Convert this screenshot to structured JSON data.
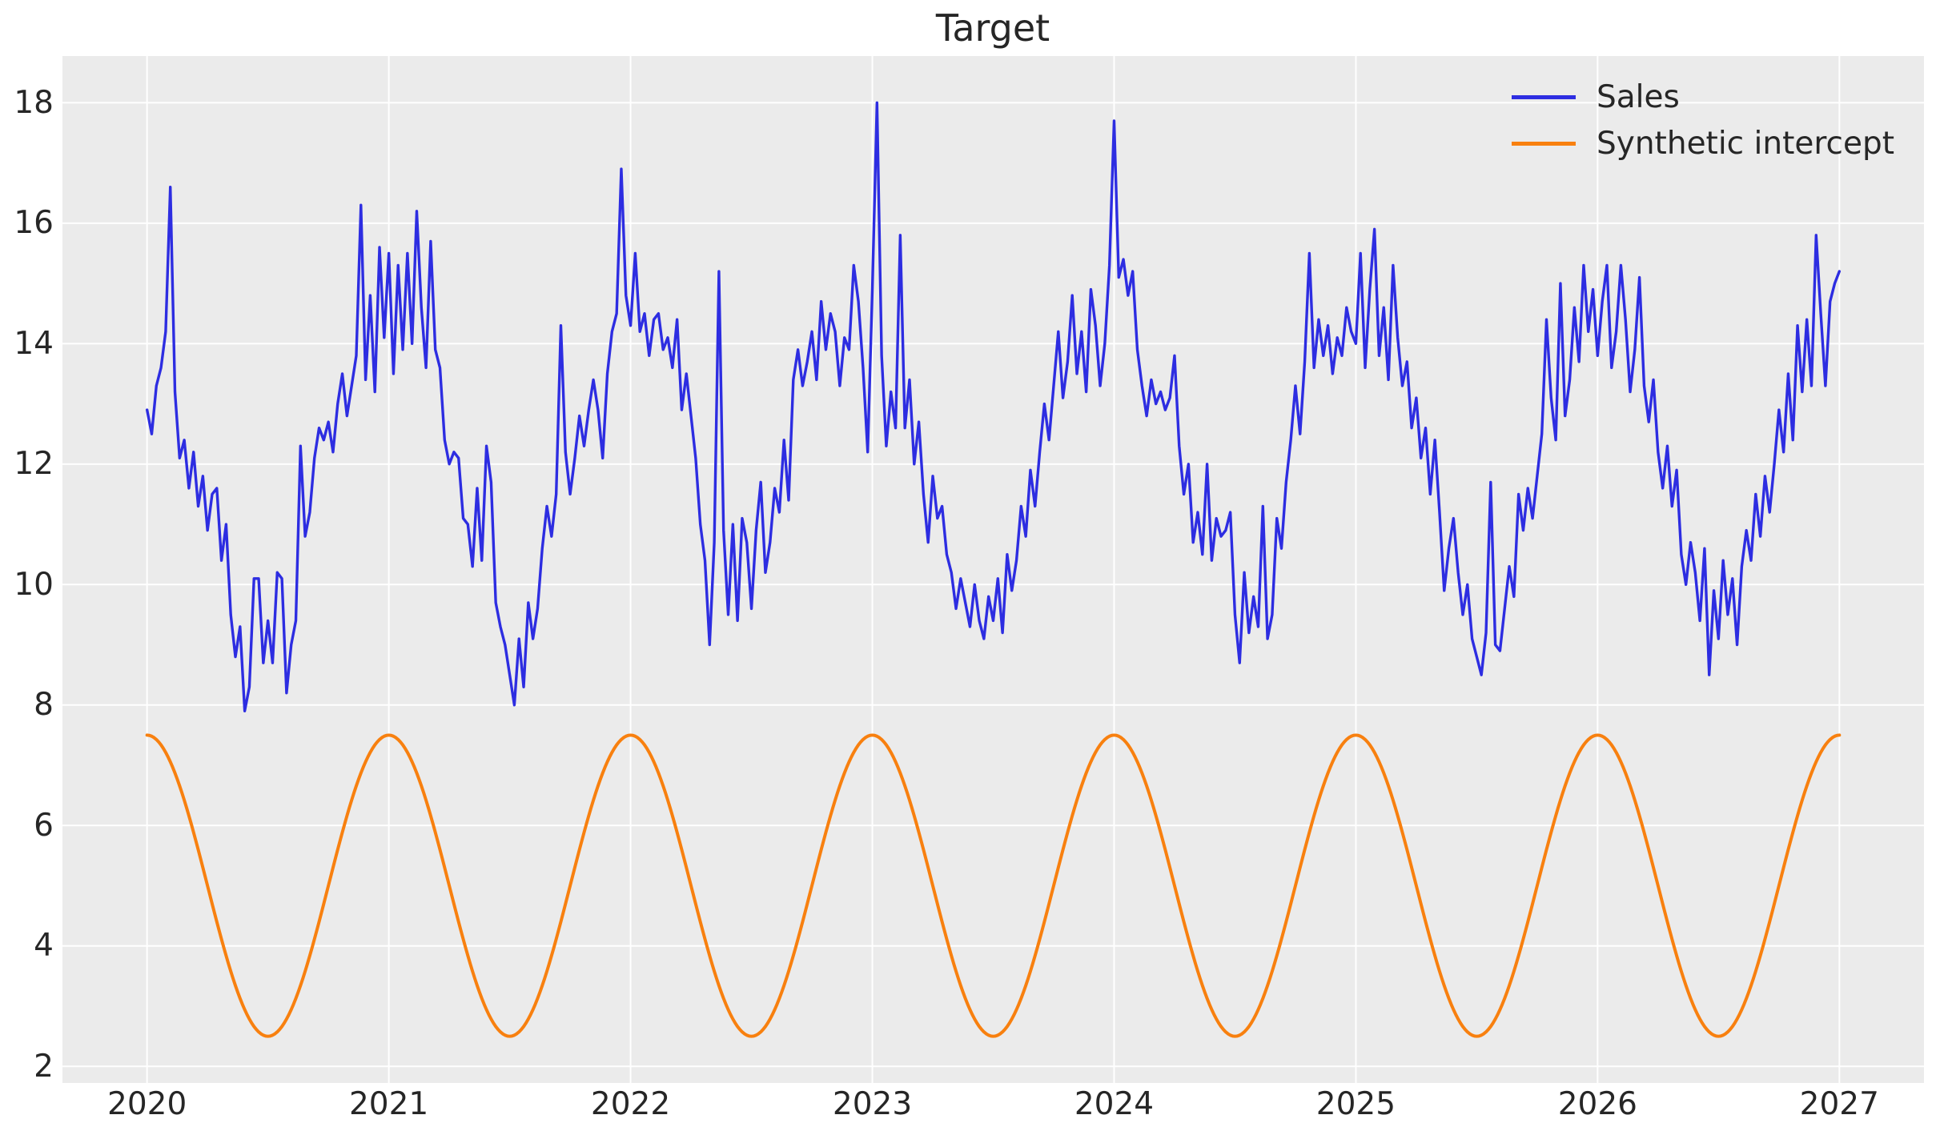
{
  "figure": {
    "title": "Target",
    "background": "#ffffff",
    "axes_background": "#ebebeb",
    "grid_color": "#ffffff",
    "text_color": "#262626"
  },
  "chart_data": {
    "type": "line",
    "title": "Target",
    "xlabel": "",
    "ylabel": "",
    "grid": true,
    "legend_position": "upper right",
    "xlim": [
      2019.65,
      2027.35
    ],
    "ylim": [
      1.725,
      18.775
    ],
    "xticks": [
      2020,
      2021,
      2022,
      2023,
      2024,
      2025,
      2026,
      2027
    ],
    "yticks": [
      2,
      4,
      6,
      8,
      10,
      12,
      14,
      16,
      18
    ],
    "series": [
      {
        "name": "Sales",
        "color": "#2d2de1",
        "line_width": 3.4,
        "x_start": 2020,
        "x_step": 0.019230769,
        "values": [
          12.9,
          12.5,
          13.3,
          13.6,
          14.2,
          16.6,
          13.2,
          12.1,
          12.4,
          11.6,
          12.2,
          11.3,
          11.8,
          10.9,
          11.5,
          11.6,
          10.4,
          11.0,
          9.5,
          8.8,
          9.3,
          7.9,
          8.3,
          10.1,
          10.1,
          8.7,
          9.4,
          8.7,
          10.2,
          10.1,
          8.2,
          9.0,
          9.4,
          12.3,
          10.8,
          11.2,
          12.1,
          12.6,
          12.4,
          12.7,
          12.2,
          13.0,
          13.5,
          12.8,
          13.3,
          13.8,
          16.3,
          13.4,
          14.8,
          13.2,
          15.6,
          14.1,
          15.5,
          13.5,
          15.3,
          13.9,
          15.5,
          14.0,
          16.2,
          14.6,
          13.6,
          15.7,
          13.9,
          13.6,
          12.4,
          12.0,
          12.2,
          12.1,
          11.1,
          11.0,
          10.3,
          11.6,
          10.4,
          12.3,
          11.7,
          9.7,
          9.3,
          9.0,
          8.5,
          8.0,
          9.1,
          8.3,
          9.7,
          9.1,
          9.6,
          10.6,
          11.3,
          10.8,
          11.5,
          14.3,
          12.2,
          11.5,
          12.1,
          12.8,
          12.3,
          12.9,
          13.4,
          12.9,
          12.1,
          13.5,
          14.2,
          14.5,
          16.9,
          14.8,
          14.3,
          15.5,
          14.2,
          14.5,
          13.8,
          14.4,
          14.5,
          13.9,
          14.1,
          13.6,
          14.4,
          12.9,
          13.5,
          12.8,
          12.1,
          11.0,
          10.4,
          9.0,
          10.7,
          15.2,
          10.9,
          9.5,
          11.0,
          9.4,
          11.1,
          10.7,
          9.6,
          10.9,
          11.7,
          10.2,
          10.7,
          11.6,
          11.2,
          12.4,
          11.4,
          13.4,
          13.9,
          13.3,
          13.7,
          14.2,
          13.4,
          14.7,
          13.9,
          14.5,
          14.2,
          13.3,
          14.1,
          13.9,
          15.3,
          14.7,
          13.6,
          12.2,
          14.9,
          18.0,
          13.8,
          12.3,
          13.2,
          12.6,
          15.8,
          12.6,
          13.4,
          12.0,
          12.7,
          11.5,
          10.7,
          11.8,
          11.1,
          11.3,
          10.5,
          10.2,
          9.6,
          10.1,
          9.7,
          9.3,
          10.0,
          9.4,
          9.1,
          9.8,
          9.4,
          10.1,
          9.2,
          10.5,
          9.9,
          10.4,
          11.3,
          10.8,
          11.9,
          11.3,
          12.2,
          13.0,
          12.4,
          13.3,
          14.2,
          13.1,
          13.7,
          14.8,
          13.5,
          14.2,
          13.2,
          14.9,
          14.3,
          13.3,
          14.0,
          15.3,
          17.7,
          15.1,
          15.4,
          14.8,
          15.2,
          13.9,
          13.3,
          12.8,
          13.4,
          13.0,
          13.2,
          12.9,
          13.1,
          13.8,
          12.3,
          11.5,
          12.0,
          10.7,
          11.2,
          10.5,
          12.0,
          10.4,
          11.1,
          10.8,
          10.9,
          11.2,
          9.5,
          8.7,
          10.2,
          9.2,
          9.8,
          9.3,
          11.3,
          9.1,
          9.5,
          11.1,
          10.6,
          11.7,
          12.4,
          13.3,
          12.5,
          13.7,
          15.5,
          13.6,
          14.4,
          13.8,
          14.3,
          13.5,
          14.1,
          13.8,
          14.6,
          14.2,
          14.0,
          15.5,
          13.6,
          14.9,
          15.9,
          13.8,
          14.6,
          13.4,
          15.3,
          14.1,
          13.3,
          13.7,
          12.6,
          13.1,
          12.1,
          12.6,
          11.5,
          12.4,
          11.2,
          9.9,
          10.6,
          11.1,
          10.2,
          9.5,
          10.0,
          9.1,
          8.8,
          8.5,
          9.2,
          11.7,
          9.0,
          8.9,
          9.6,
          10.3,
          9.8,
          11.5,
          10.9,
          11.6,
          11.1,
          11.8,
          12.5,
          14.4,
          13.1,
          12.4,
          15.0,
          12.8,
          13.4,
          14.6,
          13.7,
          15.3,
          14.2,
          14.9,
          13.8,
          14.7,
          15.3,
          13.6,
          14.2,
          15.3,
          14.4,
          13.2,
          13.9,
          15.1,
          13.3,
          12.7,
          13.4,
          12.2,
          11.6,
          12.3,
          11.3,
          11.9,
          10.5,
          10.0,
          10.7,
          10.2,
          9.4,
          10.6,
          8.5,
          9.9,
          9.1,
          10.4,
          9.5,
          10.1,
          9.0,
          10.3,
          10.9,
          10.4,
          11.5,
          10.8,
          11.8,
          11.2,
          12.0,
          12.9,
          12.2,
          13.5,
          12.4,
          14.3,
          13.2,
          14.4,
          13.3,
          15.8,
          14.5,
          13.3,
          14.7,
          15.0,
          15.2
        ]
      },
      {
        "name": "Synthetic intercept",
        "color": "#f8800f",
        "line_width": 4,
        "generator": {
          "type": "cosine",
          "mean": 5,
          "amplitude": 2.5,
          "period": 1,
          "x_start": 2020,
          "x_end": 2027,
          "samples_per_year": 104
        }
      }
    ]
  }
}
